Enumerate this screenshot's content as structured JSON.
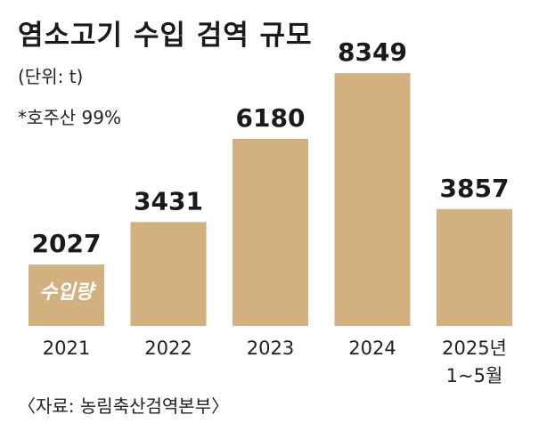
{
  "chart_data": {
    "type": "bar",
    "title": "염소고기 수입 검역 규모",
    "unit_label": "(단위: t)",
    "note": "*호주산 99%",
    "source": "〈자료: 농림축산검역본부〉",
    "categories": [
      [
        "2021"
      ],
      [
        "2022"
      ],
      [
        "2023"
      ],
      [
        "2024"
      ],
      [
        "2025년",
        "1~5월"
      ]
    ],
    "series": [
      {
        "values": [
          2027,
          3431,
          6180,
          8349,
          3857
        ]
      }
    ],
    "bar_inner_label": "수입량",
    "bar_color": "#d2b07f",
    "ylim": [
      0,
      9000
    ],
    "grid": false,
    "legend": "none"
  }
}
